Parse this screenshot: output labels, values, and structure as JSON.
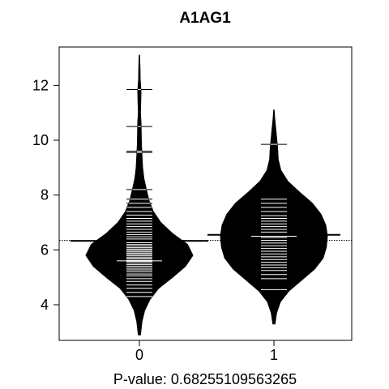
{
  "chart_data": {
    "type": "beanplot",
    "title": "A1AG1",
    "xlabel": "P-value: 0.68255109563265",
    "ylabel": "",
    "categories": [
      "0",
      "1"
    ],
    "ylim": [
      2.7,
      13.4
    ],
    "yticks": [
      4,
      6,
      8,
      10,
      12
    ],
    "overall_mean": 6.35,
    "groups": [
      {
        "name": "0",
        "mean": 6.33,
        "median": 5.6,
        "range": [
          2.9,
          13.1
        ],
        "density": [
          [
            2.9,
            0.02
          ],
          [
            3.4,
            0.05
          ],
          [
            3.8,
            0.1
          ],
          [
            4.2,
            0.2
          ],
          [
            4.6,
            0.36
          ],
          [
            5.0,
            0.62
          ],
          [
            5.4,
            0.86
          ],
          [
            5.8,
            1.0
          ],
          [
            6.2,
            0.9
          ],
          [
            6.6,
            0.62
          ],
          [
            7.0,
            0.4
          ],
          [
            7.4,
            0.26
          ],
          [
            7.8,
            0.18
          ],
          [
            8.2,
            0.13
          ],
          [
            8.6,
            0.085
          ],
          [
            9.0,
            0.06
          ],
          [
            9.4,
            0.05
          ],
          [
            9.8,
            0.04
          ],
          [
            10.2,
            0.035
          ],
          [
            10.6,
            0.032
          ],
          [
            11.0,
            0.02
          ],
          [
            11.4,
            0.025
          ],
          [
            11.8,
            0.03
          ],
          [
            12.2,
            0.015
          ],
          [
            12.6,
            0.012
          ],
          [
            13.1,
            0.005
          ]
        ],
        "observations": [
          4.3,
          4.45,
          4.6,
          4.72,
          4.85,
          4.95,
          5.05,
          5.12,
          5.2,
          5.27,
          5.33,
          5.4,
          5.46,
          5.52,
          5.58,
          5.62,
          5.68,
          5.72,
          5.78,
          5.83,
          5.88,
          5.93,
          5.98,
          6.03,
          6.08,
          6.14,
          6.2,
          6.26,
          6.32,
          6.4,
          6.48,
          6.56,
          6.65,
          6.75,
          6.85,
          6.95,
          7.05,
          7.15,
          7.27,
          7.4,
          7.55,
          7.7,
          7.85,
          8.2,
          9.55,
          9.6,
          10.5,
          11.85
        ]
      },
      {
        "name": "1",
        "mean": 6.55,
        "median": 6.5,
        "range": [
          3.3,
          11.1
        ],
        "density": [
          [
            3.3,
            0.02
          ],
          [
            3.7,
            0.05
          ],
          [
            4.1,
            0.12
          ],
          [
            4.5,
            0.28
          ],
          [
            4.9,
            0.52
          ],
          [
            5.3,
            0.76
          ],
          [
            5.7,
            0.92
          ],
          [
            6.1,
            0.98
          ],
          [
            6.5,
            1.0
          ],
          [
            6.9,
            0.97
          ],
          [
            7.3,
            0.88
          ],
          [
            7.7,
            0.72
          ],
          [
            8.1,
            0.48
          ],
          [
            8.5,
            0.26
          ],
          [
            8.9,
            0.13
          ],
          [
            9.3,
            0.08
          ],
          [
            9.7,
            0.07
          ],
          [
            10.1,
            0.05
          ],
          [
            10.5,
            0.03
          ],
          [
            10.8,
            0.015
          ],
          [
            11.1,
            0.005
          ]
        ],
        "observations": [
          4.55,
          4.95,
          5.1,
          5.25,
          5.35,
          5.45,
          5.55,
          5.65,
          5.75,
          5.85,
          5.95,
          6.05,
          6.15,
          6.25,
          6.35,
          6.45,
          6.55,
          6.65,
          6.75,
          6.85,
          6.95,
          7.05,
          7.15,
          7.25,
          7.4,
          7.55,
          7.7,
          7.85,
          9.85
        ]
      }
    ]
  }
}
